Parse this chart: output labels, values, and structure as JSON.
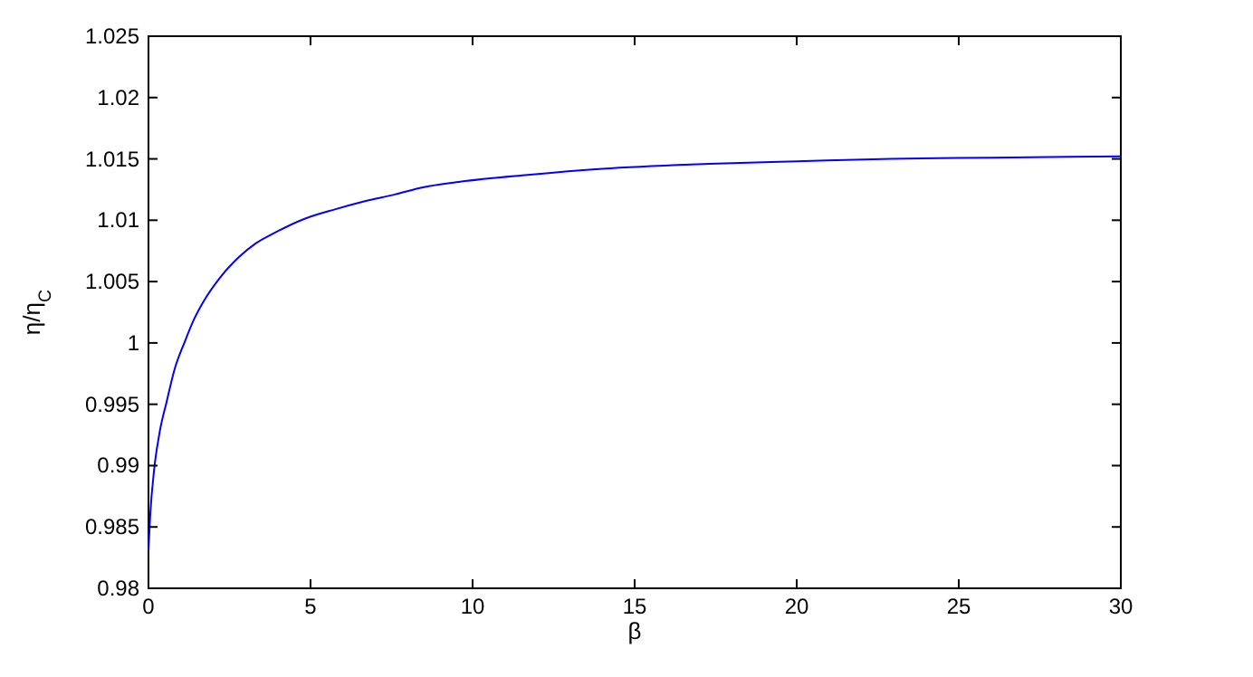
{
  "chart_data": {
    "type": "line",
    "xlabel": "β",
    "ylabel": "η/η$_{C}$",
    "xlim": [
      0,
      30
    ],
    "xticks": [
      0,
      5,
      10,
      15,
      20,
      25,
      30
    ],
    "ylim": [
      0.98,
      1.025
    ],
    "yticks": [
      0.98,
      0.985,
      0.99,
      0.995,
      1,
      1.005,
      1.01,
      1.015,
      1.02,
      1.025
    ],
    "grid": false,
    "line_style": "solid",
    "series": [
      {
        "color": "#0000ff",
        "x": [
          0,
          0.05,
          0.18,
          0.35,
          0.56,
          0.8,
          1.12,
          1.4,
          1.68,
          2.2,
          2.79,
          3.3,
          3.91,
          4.8,
          5.77,
          6.6,
          7.6,
          8.5,
          9.5,
          11.7,
          14,
          17.3,
          20,
          22.9,
          26,
          30
        ],
        "values": [
          0.9831,
          0.9858,
          0.9898,
          0.9928,
          0.9952,
          0.9978,
          1.0001,
          1.0019,
          1.0033,
          1.0053,
          1.007,
          1.0081,
          1.009,
          1.0101,
          1.0109,
          1.0115,
          1.0121,
          1.0127,
          1.0131,
          1.0137,
          1.0142,
          1.0146,
          1.0148,
          1.015,
          1.0151,
          1.0152
        ]
      }
    ]
  }
}
